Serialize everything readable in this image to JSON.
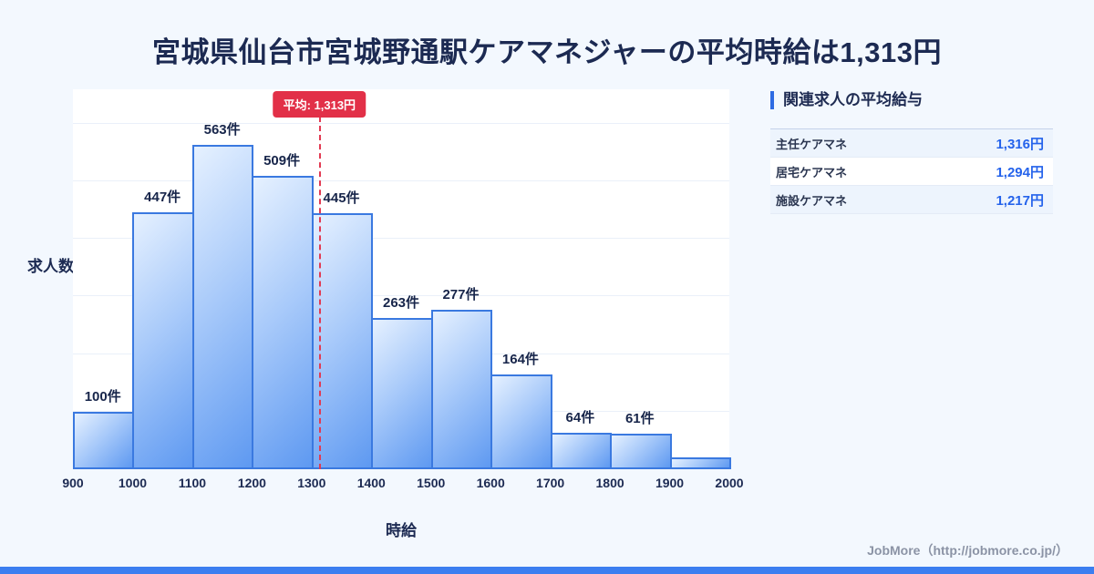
{
  "page": {
    "title": "宮城県仙台市宮城野通駅ケアマネジャーの平均時給は1,313円",
    "footer": "JobMore（http://jobmore.co.jp/）"
  },
  "chart_data": {
    "type": "bar",
    "title": "宮城県仙台市宮城野通駅ケアマネジャーの平均時給は1,313円",
    "xlabel": "時給",
    "ylabel": "求人数",
    "x_ticks": [
      900,
      1000,
      1100,
      1200,
      1300,
      1400,
      1500,
      1600,
      1700,
      1800,
      1900,
      2000
    ],
    "bin_start": 900,
    "bin_width": 100,
    "values": [
      100,
      447,
      563,
      509,
      445,
      263,
      277,
      164,
      64,
      61,
      20
    ],
    "bar_labels": [
      "100件",
      "447件",
      "563件",
      "509件",
      "445件",
      "263件",
      "277件",
      "164件",
      "64件",
      "61件",
      ""
    ],
    "average": 1313,
    "average_label": "平均: 1,313円",
    "ylim": [
      0,
      660
    ],
    "grid": "horizontal-light",
    "legend": "none"
  },
  "side_panel": {
    "heading": "関連求人の平均給与",
    "rows": [
      {
        "label": "主任ケアマネ",
        "value": "1,316円"
      },
      {
        "label": "居宅ケアマネ",
        "value": "1,294円"
      },
      {
        "label": "施設ケアマネ",
        "value": "1,217円"
      }
    ]
  },
  "colors": {
    "accent_blue": "#2563eb",
    "bar_border": "#3a79e0",
    "bar_fill_top": "#e6f1ff",
    "bar_fill_bottom": "#5e99f1",
    "average_red": "#e23048",
    "title_navy": "#1c2a52",
    "bottom_bar": "#3b7ef0",
    "background": "#f3f8fe"
  }
}
